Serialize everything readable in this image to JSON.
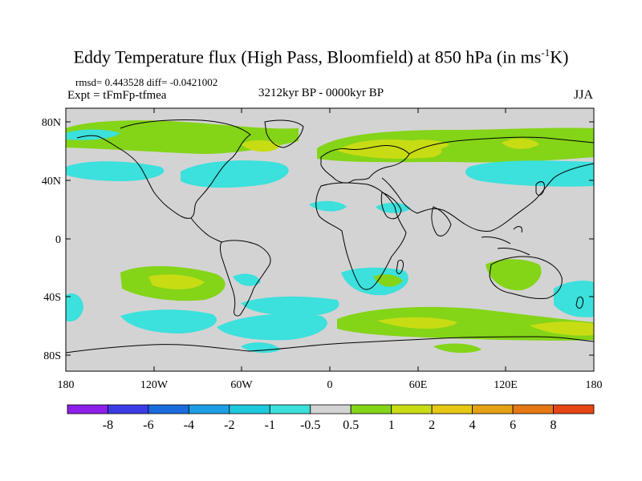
{
  "title": {
    "main": "Eddy Temperature flux (High Pass, Bloomfield) at 850 hPa (in ms",
    "sup": "-1",
    "end": "K)"
  },
  "stats": "rmsd= 0.443528 diff= -0.0421002",
  "experiment": "Expt = tFmFp-tfmea",
  "period": "3212kyr BP - 0000kyr BP",
  "season": "JJA",
  "lat_labels": [
    "80N",
    "40N",
    "0",
    "40S",
    "80S"
  ],
  "lon_labels": [
    "180",
    "120W",
    "60W",
    "0",
    "60E",
    "120E",
    "180"
  ],
  "colorbar": {
    "colors": [
      "#8c20e8",
      "#3c3ce6",
      "#1a6cdc",
      "#1c9ee6",
      "#1ec8dc",
      "#3ce0dc",
      "#d3d3d3",
      "#84d418",
      "#c8dc14",
      "#e6c814",
      "#e6a014",
      "#e67814",
      "#e64614"
    ],
    "labels": [
      "-8",
      "-6",
      "-4",
      "-2",
      "-1",
      "-0.5",
      "0.5",
      "1",
      "2",
      "4",
      "6",
      "8"
    ]
  }
}
